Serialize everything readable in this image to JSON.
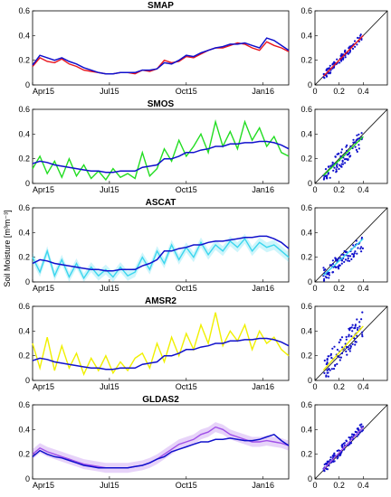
{
  "figure": {
    "ylabel": "Soil Moisture [m³m⁻³]",
    "reference_color": "#1010cc"
  },
  "chart_data": [
    {
      "type": "line",
      "title": "SMAP",
      "color": "#e8141c",
      "band": false,
      "x_ticks": [
        "Apr15",
        "Jul15",
        "Oct15",
        "Jan16"
      ],
      "y_ticks": [
        "0",
        "0.2",
        "0.4",
        "0.6"
      ],
      "ylim": [
        0,
        0.6
      ],
      "series": [
        {
          "values": [
            0.15,
            0.22,
            0.19,
            0.18,
            0.21,
            0.17,
            0.15,
            0.12,
            0.11,
            0.1,
            0.09,
            0.09,
            0.1,
            0.1,
            0.09,
            0.12,
            0.11,
            0.13,
            0.2,
            0.18,
            0.19,
            0.23,
            0.22,
            0.25,
            0.28,
            0.3,
            0.3,
            0.32,
            0.34,
            0.33,
            0.3,
            0.28,
            0.35,
            0.32,
            0.3,
            0.27
          ]
        },
        {
          "values": [
            0.16,
            0.24,
            0.22,
            0.2,
            0.22,
            0.19,
            0.17,
            0.14,
            0.12,
            0.1,
            0.09,
            0.09,
            0.1,
            0.1,
            0.1,
            0.12,
            0.12,
            0.13,
            0.18,
            0.17,
            0.2,
            0.24,
            0.23,
            0.26,
            0.28,
            0.3,
            0.31,
            0.33,
            0.33,
            0.34,
            0.32,
            0.3,
            0.38,
            0.36,
            0.32,
            0.28
          ]
        }
      ],
      "scatter": {
        "xlim": [
          0,
          0.6
        ],
        "ylim": [
          0,
          0.6
        ],
        "x_ticks": [
          "0",
          "0.2",
          "0.4"
        ],
        "y_ticks": [
          "0",
          "0.2",
          "0.4",
          "0.6"
        ],
        "spread": 0.03,
        "bias": 0
      }
    },
    {
      "type": "line",
      "title": "SMOS",
      "color": "#22dd22",
      "band": false,
      "x_ticks": [
        "Apr15",
        "Jul15",
        "Oct15",
        "Jan16"
      ],
      "y_ticks": [
        "0",
        "0.2",
        "0.4",
        "0.6"
      ],
      "ylim": [
        0,
        0.6
      ],
      "series": [
        {
          "values": [
            0.12,
            0.22,
            0.08,
            0.18,
            0.05,
            0.2,
            0.06,
            0.15,
            0.04,
            0.1,
            0.03,
            0.12,
            0.05,
            0.08,
            0.04,
            0.25,
            0.06,
            0.12,
            0.28,
            0.18,
            0.35,
            0.22,
            0.3,
            0.4,
            0.25,
            0.5,
            0.3,
            0.42,
            0.28,
            0.5,
            0.35,
            0.45,
            0.3,
            0.38,
            0.25,
            0.22
          ]
        },
        {
          "values": [
            0.16,
            0.18,
            0.17,
            0.15,
            0.14,
            0.13,
            0.12,
            0.11,
            0.1,
            0.1,
            0.09,
            0.09,
            0.1,
            0.1,
            0.1,
            0.13,
            0.14,
            0.15,
            0.2,
            0.2,
            0.22,
            0.25,
            0.25,
            0.27,
            0.28,
            0.3,
            0.3,
            0.32,
            0.32,
            0.33,
            0.33,
            0.34,
            0.34,
            0.33,
            0.31,
            0.28
          ]
        }
      ],
      "scatter": {
        "xlim": [
          0,
          0.6
        ],
        "ylim": [
          0,
          0.6
        ],
        "x_ticks": [
          "0",
          "0.2",
          "0.4"
        ],
        "y_ticks": [
          "0",
          "0.2",
          "0.4",
          "0.6"
        ],
        "spread": 0.07,
        "bias": -0.02
      }
    },
    {
      "type": "line",
      "title": "ASCAT",
      "color": "#3bd6ee",
      "band": true,
      "x_ticks": [
        "Apr15",
        "Jul15",
        "Oct15",
        "Jan16"
      ],
      "y_ticks": [
        "0",
        "0.2",
        "0.4",
        "0.6"
      ],
      "ylim": [
        0,
        0.6
      ],
      "series": [
        {
          "values": [
            0.2,
            0.08,
            0.25,
            0.05,
            0.18,
            0.04,
            0.15,
            0.03,
            0.12,
            0.05,
            0.1,
            0.04,
            0.12,
            0.05,
            0.08,
            0.2,
            0.1,
            0.25,
            0.15,
            0.3,
            0.18,
            0.28,
            0.2,
            0.32,
            0.22,
            0.3,
            0.25,
            0.33,
            0.28,
            0.35,
            0.25,
            0.32,
            0.28,
            0.3,
            0.25,
            0.2
          ]
        },
        {
          "values": [
            0.15,
            0.18,
            0.17,
            0.15,
            0.14,
            0.13,
            0.12,
            0.11,
            0.1,
            0.1,
            0.09,
            0.09,
            0.1,
            0.1,
            0.1,
            0.13,
            0.15,
            0.18,
            0.25,
            0.25,
            0.27,
            0.28,
            0.3,
            0.3,
            0.32,
            0.33,
            0.33,
            0.34,
            0.35,
            0.36,
            0.36,
            0.37,
            0.37,
            0.35,
            0.32,
            0.27
          ]
        }
      ],
      "scatter": {
        "xlim": [
          0,
          0.6
        ],
        "ylim": [
          0,
          0.6
        ],
        "x_ticks": [
          "0",
          "0.2",
          "0.4"
        ],
        "y_ticks": [
          "0",
          "0.2",
          "0.4",
          "0.6"
        ],
        "spread": 0.06,
        "bias": -0.05
      }
    },
    {
      "type": "line",
      "title": "AMSR2",
      "color": "#f0f000",
      "band": false,
      "x_ticks": [
        "Apr15",
        "Jul15",
        "Oct15",
        "Jan16"
      ],
      "y_ticks": [
        "0",
        "0.2",
        "0.4",
        "0.6"
      ],
      "ylim": [
        0,
        0.6
      ],
      "series": [
        {
          "values": [
            0.3,
            0.1,
            0.35,
            0.08,
            0.28,
            0.1,
            0.22,
            0.05,
            0.18,
            0.08,
            0.2,
            0.06,
            0.15,
            0.08,
            0.18,
            0.22,
            0.1,
            0.3,
            0.15,
            0.35,
            0.2,
            0.38,
            0.25,
            0.45,
            0.3,
            0.55,
            0.28,
            0.4,
            0.32,
            0.45,
            0.25,
            0.4,
            0.3,
            0.35,
            0.25,
            0.2
          ]
        },
        {
          "values": [
            0.16,
            0.18,
            0.17,
            0.15,
            0.14,
            0.13,
            0.12,
            0.11,
            0.1,
            0.1,
            0.09,
            0.09,
            0.1,
            0.1,
            0.1,
            0.13,
            0.14,
            0.15,
            0.2,
            0.2,
            0.22,
            0.25,
            0.25,
            0.27,
            0.28,
            0.3,
            0.3,
            0.32,
            0.32,
            0.33,
            0.33,
            0.34,
            0.34,
            0.33,
            0.31,
            0.28
          ]
        }
      ],
      "scatter": {
        "xlim": [
          0,
          0.6
        ],
        "ylim": [
          0,
          0.6
        ],
        "x_ticks": [
          "0",
          "0.2",
          "0.4"
        ],
        "y_ticks": [
          "0",
          "0.2",
          "0.4",
          "0.6"
        ],
        "spread": 0.1,
        "bias": 0.04
      }
    },
    {
      "type": "line",
      "title": "GLDAS2",
      "color": "#a050e8",
      "band": true,
      "x_ticks": [
        "Apr15",
        "Jul15",
        "Oct15",
        "Jan16"
      ],
      "y_ticks": [
        "0",
        "0.2",
        "0.4",
        "0.6"
      ],
      "ylim": [
        0,
        0.6
      ],
      "series": [
        {
          "values": [
            0.2,
            0.25,
            0.22,
            0.2,
            0.18,
            0.16,
            0.14,
            0.12,
            0.11,
            0.1,
            0.09,
            0.09,
            0.09,
            0.09,
            0.1,
            0.11,
            0.13,
            0.16,
            0.2,
            0.24,
            0.28,
            0.3,
            0.32,
            0.36,
            0.38,
            0.42,
            0.4,
            0.36,
            0.34,
            0.32,
            0.3,
            0.3,
            0.31,
            0.3,
            0.29,
            0.27
          ]
        },
        {
          "values": [
            0.18,
            0.23,
            0.2,
            0.18,
            0.17,
            0.15,
            0.13,
            0.11,
            0.1,
            0.09,
            0.09,
            0.09,
            0.09,
            0.09,
            0.1,
            0.11,
            0.13,
            0.16,
            0.18,
            0.22,
            0.24,
            0.26,
            0.28,
            0.3,
            0.3,
            0.32,
            0.32,
            0.33,
            0.32,
            0.31,
            0.31,
            0.32,
            0.34,
            0.36,
            0.31,
            0.27
          ]
        }
      ],
      "scatter": {
        "xlim": [
          0,
          0.6
        ],
        "ylim": [
          0,
          0.6
        ],
        "x_ticks": [
          "0",
          "0.2",
          "0.4"
        ],
        "y_ticks": [
          "0",
          "0.2",
          "0.4",
          "0.6"
        ],
        "spread": 0.035,
        "bias": 0.02
      }
    }
  ]
}
